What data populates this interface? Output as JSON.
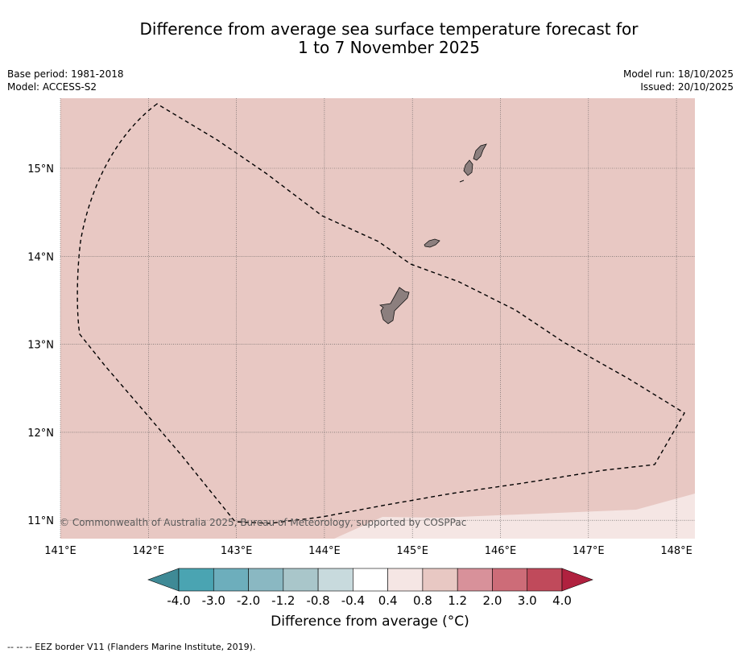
{
  "title": {
    "line1": "Difference from average sea surface temperature forecast for",
    "line2": "1 to 7 November 2025"
  },
  "meta": {
    "base_period": "Base period: 1981-2018",
    "model": "Model: ACCESS-S2",
    "model_run": "Model run: 18/10/2025",
    "issued": "Issued: 20/10/2025"
  },
  "map": {
    "lon_ticks": [
      {
        "value": 141,
        "label": "141°E"
      },
      {
        "value": 142,
        "label": "142°E"
      },
      {
        "value": 143,
        "label": "143°E"
      },
      {
        "value": 144,
        "label": "144°E"
      },
      {
        "value": 145,
        "label": "145°E"
      },
      {
        "value": 146,
        "label": "146°E"
      },
      {
        "value": 147,
        "label": "147°E"
      },
      {
        "value": 148,
        "label": "148°E"
      }
    ],
    "lat_ticks": [
      {
        "value": 15,
        "label": "15°N"
      },
      {
        "value": 14,
        "label": "14°N"
      },
      {
        "value": 13,
        "label": "13°N"
      },
      {
        "value": 12,
        "label": "12°N"
      },
      {
        "value": 11,
        "label": "11°N"
      }
    ],
    "copyright": "© Commonwealth of Australia 2025, Bureau of Meteorology, supported by COSPPac",
    "background_color": "#e8c8c3",
    "low_anomaly_color": "#f5e6e4",
    "land_color": "#8c7f7e"
  },
  "colorbar": {
    "title": "Difference from average ($^\\circ$C)",
    "title_display": "Difference from average (°C)",
    "labels": [
      "-4.0",
      "-3.0",
      "-2.0",
      "-1.2",
      "-0.8",
      "-0.4",
      "0.4",
      "0.8",
      "1.2",
      "2.0",
      "3.0",
      "4.0"
    ],
    "colors": [
      "#4aa4b2",
      "#6daebc",
      "#8ab8c2",
      "#a9c6ca",
      "#c8dadd",
      "#ffffff",
      "#f5e6e4",
      "#e8c8c3",
      "#d8919a",
      "#cd6c78",
      "#c04a5b"
    ],
    "under_color": "#3f8a96",
    "over_color": "#b0213f"
  },
  "footer": "--  --  -- EEZ border V11 (Flanders Marine Institute, 2019)."
}
